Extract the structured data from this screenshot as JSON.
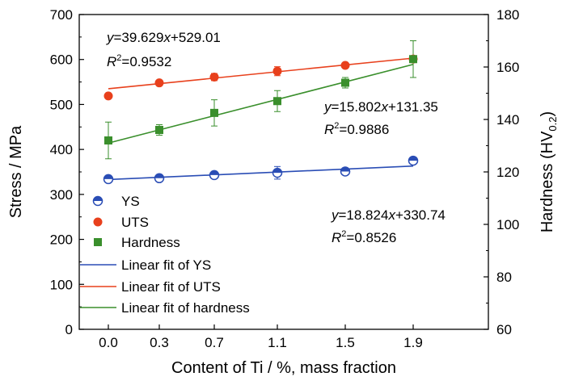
{
  "chart_data": {
    "type": "scatter",
    "categories": [
      "0.0",
      "0.3",
      "0.7",
      "1.1",
      "1.5",
      "1.9"
    ],
    "xlabel": "Content of Ti / %, mass fraction",
    "ylabel": "Stress / MPa",
    "y2label": "Hardness (HV",
    "y2label_sub": "0.2",
    "y2label_close": ")",
    "ylim": [
      0,
      700
    ],
    "y2lim": [
      60,
      180
    ],
    "yticks": [
      "0",
      "100",
      "200",
      "300",
      "400",
      "500",
      "600",
      "700"
    ],
    "y2ticks": [
      "60",
      "80",
      "100",
      "120",
      "140",
      "160",
      "180"
    ],
    "grid": false,
    "legend_position": "bottom-left",
    "series": [
      {
        "name": "YS",
        "axis": "left",
        "marker": "half-circle",
        "color": "#2a4db5",
        "values": [
          334,
          336,
          343,
          348,
          351,
          375
        ],
        "errors": [
          4,
          5,
          7,
          14,
          6,
          7
        ]
      },
      {
        "name": "UTS",
        "axis": "left",
        "marker": "circle",
        "color": "#e8401c",
        "values": [
          519,
          548,
          561,
          574,
          587,
          601
        ],
        "errors": [
          3,
          4,
          8,
          10,
          5,
          6
        ]
      },
      {
        "name": "Hardness",
        "axis": "right",
        "marker": "square",
        "color": "#3a8f2c",
        "values": [
          132,
          136,
          142.5,
          147,
          154,
          163
        ],
        "errors": [
          7,
          2,
          5,
          4,
          2,
          7
        ]
      }
    ],
    "fits": [
      {
        "name": "Linear fit of YS",
        "axis": "left",
        "color": "#2a4db5",
        "endpoints": [
          333,
          363
        ],
        "equation": {
          "y": "y",
          "eq": "=18.824",
          "x": "x",
          "rest": "+330.74"
        },
        "r2": {
          "R": "R",
          "sup": "2",
          "val": "=0.8526"
        }
      },
      {
        "name": "Linear fit of UTS",
        "axis": "left",
        "color": "#e8401c",
        "endpoints": [
          535,
          603
        ],
        "equation": {
          "y": "y",
          "eq": "=39.629",
          "x": "x",
          "rest": "+529.01"
        },
        "r2": {
          "R": "R",
          "sup": "2",
          "val": "=0.9532"
        }
      },
      {
        "name": "Linear fit of hardness",
        "axis": "right",
        "color": "#3a8f2c",
        "endpoints": [
          131,
          161
        ],
        "equation": {
          "y": "y",
          "eq": "=15.802",
          "x": "x",
          "rest": "+131.35"
        },
        "r2": {
          "R": "R",
          "sup": "2",
          "val": "=0.9886"
        }
      }
    ]
  }
}
